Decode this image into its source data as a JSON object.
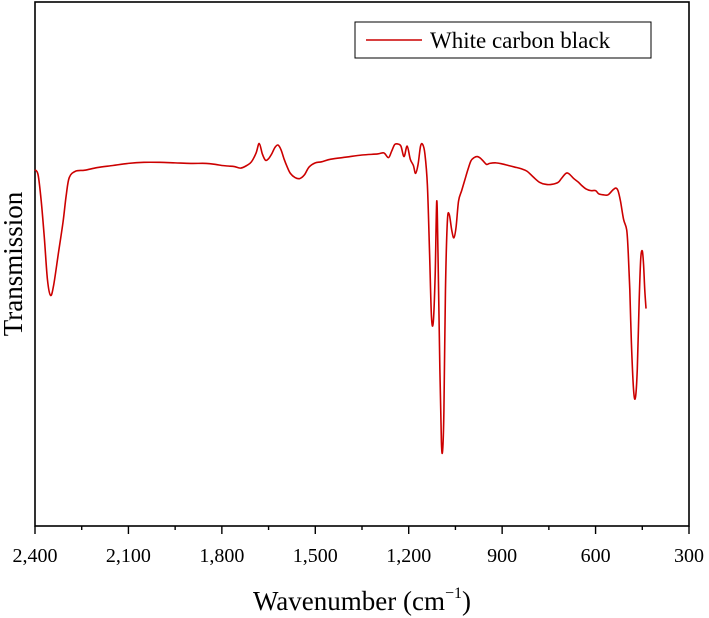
{
  "chart_data": {
    "type": "line",
    "xlabel": "Wavenumber (cm",
    "xlabel_sup": "−1",
    "xlabel_close": ")",
    "ylabel": "Transmission",
    "xlim": [
      2400,
      300
    ],
    "x_reversed": true,
    "x_ticks": [
      2400,
      2100,
      1800,
      1500,
      1200,
      900,
      600,
      300
    ],
    "x_tick_labels": [
      "2,400",
      "2,100",
      "1,800",
      "1,500",
      "1,200",
      "900",
      "600",
      "300"
    ],
    "ylim": [
      0,
      100
    ],
    "y_ticks_labeled": false,
    "grid": false,
    "legend_position": "top-right",
    "series": [
      {
        "name": "White carbon black",
        "color": "#cc0000",
        "points": [
          [
            2400,
            68.0
          ],
          [
            2390,
            67.0
          ],
          [
            2380,
            62.0
          ],
          [
            2370,
            55.0
          ],
          [
            2360,
            47.0
          ],
          [
            2350,
            44.0
          ],
          [
            2340,
            46.0
          ],
          [
            2325,
            52.0
          ],
          [
            2310,
            58.0
          ],
          [
            2300,
            63.0
          ],
          [
            2290,
            66.5
          ],
          [
            2270,
            67.7
          ],
          [
            2240,
            67.9
          ],
          [
            2200,
            68.4
          ],
          [
            2150,
            68.8
          ],
          [
            2100,
            69.2
          ],
          [
            2050,
            69.4
          ],
          [
            2000,
            69.4
          ],
          [
            1950,
            69.3
          ],
          [
            1900,
            69.2
          ],
          [
            1850,
            69.2
          ],
          [
            1820,
            69.0
          ],
          [
            1800,
            68.8
          ],
          [
            1780,
            68.7
          ],
          [
            1760,
            68.6
          ],
          [
            1740,
            68.3
          ],
          [
            1720,
            68.8
          ],
          [
            1705,
            69.5
          ],
          [
            1690,
            71.2
          ],
          [
            1680,
            73.0
          ],
          [
            1670,
            71.0
          ],
          [
            1660,
            69.8
          ],
          [
            1650,
            70.1
          ],
          [
            1640,
            71.0
          ],
          [
            1630,
            72.2
          ],
          [
            1620,
            72.7
          ],
          [
            1610,
            71.8
          ],
          [
            1600,
            70.0
          ],
          [
            1590,
            68.5
          ],
          [
            1580,
            67.3
          ],
          [
            1565,
            66.5
          ],
          [
            1550,
            66.3
          ],
          [
            1535,
            67.0
          ],
          [
            1520,
            68.5
          ],
          [
            1500,
            69.3
          ],
          [
            1480,
            69.5
          ],
          [
            1450,
            70.0
          ],
          [
            1400,
            70.4
          ],
          [
            1350,
            70.8
          ],
          [
            1300,
            71.0
          ],
          [
            1280,
            71.2
          ],
          [
            1265,
            70.3
          ],
          [
            1255,
            71.5
          ],
          [
            1245,
            72.8
          ],
          [
            1235,
            72.9
          ],
          [
            1225,
            72.5
          ],
          [
            1215,
            70.5
          ],
          [
            1205,
            72.5
          ],
          [
            1195,
            70.0
          ],
          [
            1185,
            68.8
          ],
          [
            1178,
            67.3
          ],
          [
            1170,
            69.0
          ],
          [
            1162,
            72.5
          ],
          [
            1155,
            72.8
          ],
          [
            1148,
            71.0
          ],
          [
            1140,
            65.0
          ],
          [
            1133,
            52.0
          ],
          [
            1127,
            40.0
          ],
          [
            1121,
            39.0
          ],
          [
            1115,
            48.0
          ],
          [
            1110,
            62.0
          ],
          [
            1106,
            52.0
          ],
          [
            1100,
            30.0
          ],
          [
            1095,
            16.0
          ],
          [
            1091,
            14.5
          ],
          [
            1087,
            22.0
          ],
          [
            1082,
            45.0
          ],
          [
            1076,
            58.0
          ],
          [
            1070,
            59.5
          ],
          [
            1062,
            56.5
          ],
          [
            1055,
            55.0
          ],
          [
            1048,
            57.0
          ],
          [
            1040,
            62.0
          ],
          [
            1030,
            64.0
          ],
          [
            1020,
            66.0
          ],
          [
            1010,
            68.0
          ],
          [
            1000,
            69.7
          ],
          [
            990,
            70.3
          ],
          [
            980,
            70.5
          ],
          [
            970,
            70.2
          ],
          [
            960,
            69.6
          ],
          [
            950,
            69.0
          ],
          [
            940,
            69.2
          ],
          [
            920,
            69.3
          ],
          [
            900,
            69.1
          ],
          [
            880,
            68.8
          ],
          [
            860,
            68.5
          ],
          [
            840,
            68.2
          ],
          [
            820,
            67.7
          ],
          [
            800,
            66.6
          ],
          [
            780,
            65.6
          ],
          [
            760,
            65.2
          ],
          [
            740,
            65.2
          ],
          [
            720,
            65.6
          ],
          [
            710,
            66.3
          ],
          [
            695,
            67.3
          ],
          [
            685,
            67.2
          ],
          [
            670,
            66.3
          ],
          [
            655,
            65.6
          ],
          [
            645,
            65.0
          ],
          [
            630,
            64.3
          ],
          [
            615,
            64.0
          ],
          [
            600,
            64.0
          ],
          [
            590,
            63.4
          ],
          [
            575,
            63.2
          ],
          [
            560,
            63.2
          ],
          [
            545,
            64.1
          ],
          [
            535,
            64.5
          ],
          [
            528,
            64.0
          ],
          [
            520,
            62.0
          ],
          [
            510,
            58.5
          ],
          [
            500,
            56.5
          ],
          [
            495,
            52.0
          ],
          [
            490,
            45.0
          ],
          [
            485,
            35.0
          ],
          [
            478,
            26.0
          ],
          [
            472,
            24.5
          ],
          [
            466,
            30.0
          ],
          [
            460,
            43.0
          ],
          [
            455,
            51.0
          ],
          [
            450,
            52.5
          ],
          [
            446,
            50.0
          ],
          [
            442,
            45.0
          ],
          [
            438,
            41.5
          ]
        ]
      }
    ]
  }
}
